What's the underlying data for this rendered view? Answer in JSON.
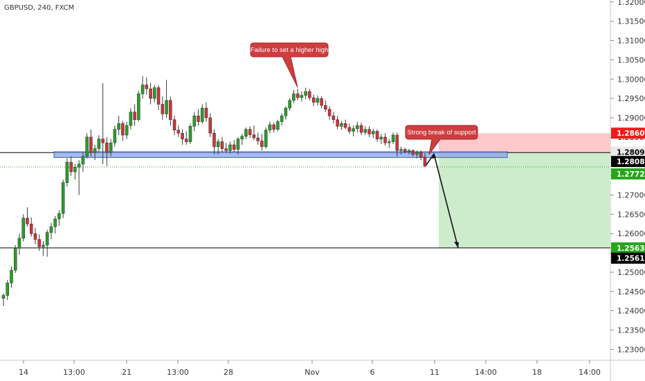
{
  "chart_title": "GBPUSD, 240, FXCM",
  "chart_data": {
    "type": "candlestick",
    "symbol": "GBPUSD",
    "timeframe": "240",
    "source": "FXCM",
    "y_axis": {
      "range": [
        1.2272,
        1.3205
      ],
      "ticks": [
        "1.32000",
        "1.31500",
        "1.31000",
        "1.30500",
        "1.30000",
        "1.29500",
        "1.29000",
        "1.28500",
        "1.28000",
        "1.27500",
        "1.27000",
        "1.26500",
        "1.26000",
        "1.25500",
        "1.25000",
        "1.24500",
        "1.24000",
        "1.23500",
        "1.23000"
      ]
    },
    "x_axis": {
      "ticks": [
        "14",
        "13:00",
        "21",
        "13:00",
        "28",
        "Nov",
        "6",
        "11",
        "14:00",
        "18",
        "14:00"
      ]
    },
    "grid": false,
    "candles_ohlc": [
      [
        1.2432,
        1.2445,
        1.2412,
        1.244
      ],
      [
        1.244,
        1.248,
        1.2428,
        1.2472
      ],
      [
        1.2472,
        1.2515,
        1.246,
        1.2505
      ],
      [
        1.2505,
        1.257,
        1.2498,
        1.2562
      ],
      [
        1.2562,
        1.26,
        1.2545,
        1.2588
      ],
      [
        1.2588,
        1.265,
        1.258,
        1.264
      ],
      [
        1.264,
        1.2668,
        1.2618,
        1.2625
      ],
      [
        1.2625,
        1.2642,
        1.2592,
        1.26
      ],
      [
        1.26,
        1.2615,
        1.2572,
        1.2585
      ],
      [
        1.2585,
        1.2598,
        1.2555,
        1.2566
      ],
      [
        1.2566,
        1.258,
        1.2542,
        1.257
      ],
      [
        1.257,
        1.261,
        1.254,
        1.2603
      ],
      [
        1.2603,
        1.2628,
        1.2585,
        1.2618
      ],
      [
        1.2618,
        1.2645,
        1.26,
        1.2638
      ],
      [
        1.2638,
        1.266,
        1.262,
        1.2652
      ],
      [
        1.2652,
        1.274,
        1.264,
        1.2732
      ],
      [
        1.2732,
        1.2795,
        1.2722,
        1.2785
      ],
      [
        1.2785,
        1.28,
        1.275,
        1.276
      ],
      [
        1.276,
        1.278,
        1.274,
        1.2772
      ],
      [
        1.2772,
        1.279,
        1.27,
        1.278
      ],
      [
        1.278,
        1.281,
        1.276,
        1.28
      ],
      [
        1.28,
        1.286,
        1.2795,
        1.285
      ],
      [
        1.285,
        1.287,
        1.28,
        1.281
      ],
      [
        1.281,
        1.283,
        1.279,
        1.282
      ],
      [
        1.282,
        1.2855,
        1.281,
        1.2845
      ],
      [
        1.2845,
        1.299,
        1.278,
        1.2835
      ],
      [
        1.2835,
        1.285,
        1.2775,
        1.281
      ],
      [
        1.281,
        1.2845,
        1.28,
        1.2835
      ],
      [
        1.2835,
        1.288,
        1.2825,
        1.287
      ],
      [
        1.287,
        1.2905,
        1.2855,
        1.2885
      ],
      [
        1.2885,
        1.2892,
        1.284,
        1.2855
      ],
      [
        1.2855,
        1.289,
        1.2845,
        1.288
      ],
      [
        1.288,
        1.2925,
        1.287,
        1.2915
      ],
      [
        1.2915,
        1.2935,
        1.288,
        1.2895
      ],
      [
        1.2895,
        1.297,
        1.289,
        1.2962
      ],
      [
        1.2962,
        1.3008,
        1.295,
        1.2985
      ],
      [
        1.2985,
        1.3005,
        1.296,
        1.2975
      ],
      [
        1.2975,
        1.299,
        1.2935,
        1.295
      ],
      [
        1.295,
        1.2985,
        1.294,
        1.2978
      ],
      [
        1.2978,
        1.2985,
        1.292,
        1.2935
      ],
      [
        1.2935,
        1.2955,
        1.2895,
        1.291
      ],
      [
        1.291,
        1.2998,
        1.29,
        1.2945
      ],
      [
        1.2945,
        1.2955,
        1.288,
        1.2895
      ],
      [
        1.2895,
        1.2905,
        1.2855,
        1.2868
      ],
      [
        1.2868,
        1.288,
        1.285,
        1.286
      ],
      [
        1.286,
        1.287,
        1.283,
        1.2845
      ],
      [
        1.2845,
        1.2865,
        1.283,
        1.2838
      ],
      [
        1.2838,
        1.2885,
        1.2832,
        1.2878
      ],
      [
        1.2878,
        1.2915,
        1.2865,
        1.2905
      ],
      [
        1.2905,
        1.2922,
        1.288,
        1.289
      ],
      [
        1.289,
        1.2935,
        1.2885,
        1.2925
      ],
      [
        1.2925,
        1.294,
        1.289,
        1.29
      ],
      [
        1.29,
        1.2912,
        1.285,
        1.286
      ],
      [
        1.286,
        1.287,
        1.2805,
        1.2825
      ],
      [
        1.2825,
        1.2845,
        1.2805,
        1.2838
      ],
      [
        1.2838,
        1.285,
        1.2812,
        1.282
      ],
      [
        1.282,
        1.2835,
        1.281,
        1.2815
      ],
      [
        1.2815,
        1.2838,
        1.2808,
        1.283
      ],
      [
        1.283,
        1.2842,
        1.2812,
        1.2818
      ],
      [
        1.2818,
        1.285,
        1.2805,
        1.2845
      ],
      [
        1.2845,
        1.2858,
        1.283,
        1.2852
      ],
      [
        1.2852,
        1.2875,
        1.2845,
        1.287
      ],
      [
        1.287,
        1.2878,
        1.2848,
        1.2856
      ],
      [
        1.2856,
        1.288,
        1.2842,
        1.2848
      ],
      [
        1.2848,
        1.2862,
        1.283,
        1.284
      ],
      [
        1.284,
        1.2858,
        1.2815,
        1.2825
      ],
      [
        1.2825,
        1.2875,
        1.282,
        1.2868
      ],
      [
        1.2868,
        1.289,
        1.286,
        1.2882
      ],
      [
        1.2882,
        1.2888,
        1.2862,
        1.287
      ],
      [
        1.287,
        1.2895,
        1.2865,
        1.289
      ],
      [
        1.289,
        1.2912,
        1.288,
        1.2905
      ],
      [
        1.2905,
        1.293,
        1.2895,
        1.2925
      ],
      [
        1.2925,
        1.295,
        1.2918,
        1.2945
      ],
      [
        1.2945,
        1.2972,
        1.2938,
        1.2962
      ],
      [
        1.2962,
        1.2975,
        1.2945,
        1.2952
      ],
      [
        1.2952,
        1.2968,
        1.2942,
        1.2958
      ],
      [
        1.2958,
        1.2978,
        1.2948,
        1.2968
      ],
      [
        1.2968,
        1.2975,
        1.2945,
        1.2952
      ],
      [
        1.2952,
        1.296,
        1.293,
        1.294
      ],
      [
        1.294,
        1.2958,
        1.2932,
        1.295
      ],
      [
        1.295,
        1.2955,
        1.2925,
        1.2932
      ],
      [
        1.2932,
        1.2945,
        1.2915,
        1.2922
      ],
      [
        1.2922,
        1.293,
        1.2895,
        1.2905
      ],
      [
        1.2905,
        1.2915,
        1.2885,
        1.2895
      ],
      [
        1.2895,
        1.2905,
        1.287,
        1.2878
      ],
      [
        1.2878,
        1.2892,
        1.2868,
        1.2885
      ],
      [
        1.2885,
        1.2895,
        1.287,
        1.2875
      ],
      [
        1.2875,
        1.2885,
        1.2858,
        1.2865
      ],
      [
        1.2865,
        1.288,
        1.2852,
        1.2872
      ],
      [
        1.2872,
        1.289,
        1.2862,
        1.288
      ],
      [
        1.288,
        1.2888,
        1.2855,
        1.2862
      ],
      [
        1.2862,
        1.2878,
        1.2855,
        1.287
      ],
      [
        1.287,
        1.2878,
        1.285,
        1.2858
      ],
      [
        1.2858,
        1.2872,
        1.2848,
        1.2865
      ],
      [
        1.2865,
        1.287,
        1.2838,
        1.2845
      ],
      [
        1.2845,
        1.2858,
        1.2832,
        1.285
      ],
      [
        1.285,
        1.286,
        1.2828,
        1.2835
      ],
      [
        1.2835,
        1.2845,
        1.2822,
        1.2838
      ],
      [
        1.2838,
        1.2862,
        1.2832,
        1.2855
      ],
      [
        1.2855,
        1.2862,
        1.28,
        1.2815
      ],
      [
        1.2815,
        1.2825,
        1.2805,
        1.2818
      ],
      [
        1.2818,
        1.2822,
        1.2808,
        1.2812
      ],
      [
        1.2812,
        1.282,
        1.2805,
        1.2815
      ],
      [
        1.2815,
        1.2818,
        1.28,
        1.2805
      ],
      [
        1.2805,
        1.2815,
        1.2795,
        1.281
      ],
      [
        1.281,
        1.2815,
        1.279,
        1.2798
      ],
      [
        1.2798,
        1.2808,
        1.2772,
        1.2775
      ]
    ],
    "zones": {
      "support_zone": [
        1.2797,
        1.2812
      ],
      "stop_zone_top": 1.28601,
      "entry_level": 1.28098,
      "target_level": 1.2563
    },
    "price_tags": [
      {
        "value": "1.28601",
        "bg": "#ef1b1b",
        "fg": "#ffffff"
      },
      {
        "value": "1.28098",
        "bg": "#eaeaea",
        "fg": "#000000"
      },
      {
        "value": "1.28082",
        "bg": "#000000",
        "fg": "#ffffff"
      },
      {
        "value": "1.27725",
        "bg": "#26a61a",
        "fg": "#ffffff"
      },
      {
        "value": "1.25630",
        "bg": "#26a61a",
        "fg": "#ffffff"
      },
      {
        "value": "1.25614",
        "bg": "#000000",
        "fg": "#ffffff"
      }
    ],
    "annotations": [
      {
        "text": "Failure to set a higher high"
      },
      {
        "text": "Strong break of support"
      }
    ],
    "colors": {
      "up": "#27a127",
      "down": "#d0343b",
      "support_fill": "#8aa4e0",
      "support_stroke": "#3d5fbf",
      "stop_fill": "#ffc9cb",
      "target_fill": "#cdeccc",
      "callout_bg": "#cf3d3f"
    }
  }
}
